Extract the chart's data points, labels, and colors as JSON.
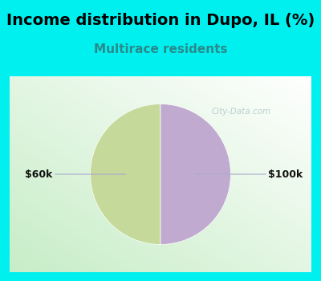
{
  "title": "Income distribution in Dupo, IL (%)",
  "subtitle": "Multirace residents",
  "title_fontsize": 14,
  "subtitle_fontsize": 11,
  "title_color": "#000000",
  "subtitle_color": "#2a8a8a",
  "slices": [
    50,
    50
  ],
  "slice_colors": [
    "#c5d99a",
    "#c0aad0"
  ],
  "labels": [
    "$60k",
    "$100k"
  ],
  "background_cyan": "#00f0f0",
  "chart_bg": "#e0f0e0",
  "watermark": "City-Data.com",
  "watermark_color": "#b0c8c8",
  "startangle": 90,
  "figsize": [
    4.0,
    3.5
  ],
  "dpi": 100
}
